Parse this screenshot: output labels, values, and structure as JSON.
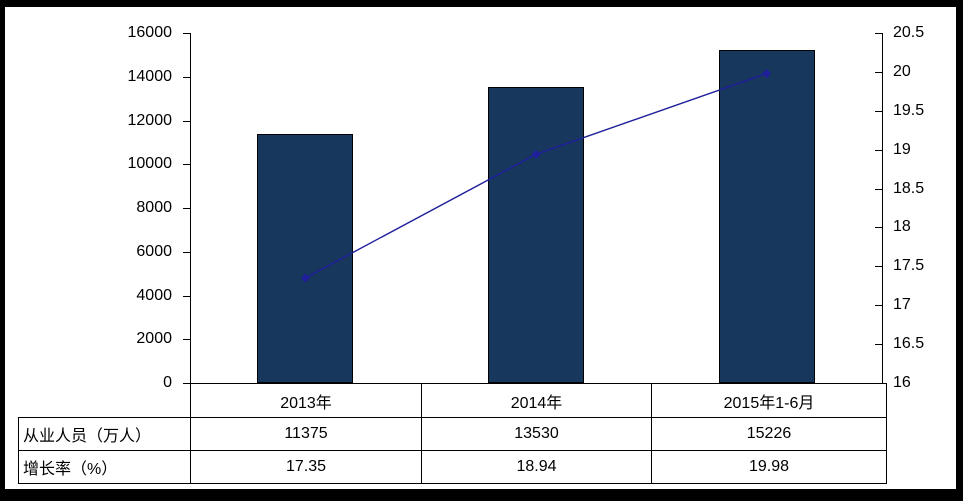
{
  "frame_color": "#000000",
  "background_color": "#ffffff",
  "chart_data": {
    "type": "bar",
    "subtype": "bar-with-line-overlay",
    "title": "",
    "xlabel": "",
    "ylabel_left": "",
    "ylabel_right": "",
    "grid": false,
    "legend_position": "none",
    "categories": [
      "2013年",
      "2014年",
      "2015年1-6月"
    ],
    "series": [
      {
        "name": "从业人员（万人）",
        "type": "bar",
        "axis": "left",
        "values": [
          11375,
          13530,
          15226
        ],
        "color": "#17375D"
      },
      {
        "name": "增长率（%）",
        "type": "line",
        "axis": "right",
        "marker": "diamond",
        "values": [
          17.35,
          18.94,
          19.98
        ],
        "color": "#1F1F9C"
      }
    ],
    "left_axis": {
      "min": 0,
      "max": 16000,
      "step": 2000,
      "tick_labels": [
        "16000",
        "14000",
        "12000",
        "10000",
        "8000",
        "6000",
        "4000",
        "2000",
        "0"
      ]
    },
    "right_axis": {
      "min": 16,
      "max": 20.5,
      "step": 0.5,
      "tick_labels": [
        "20.5",
        "20",
        "19.5",
        "19",
        "18.5",
        "18",
        "17.5",
        "17",
        "16.5",
        "16"
      ]
    }
  },
  "table": {
    "header_row": [
      "2013年",
      "2014年",
      "2015年1-6月"
    ],
    "rows": [
      {
        "label": "从业人员（万人）",
        "values": [
          "11375",
          "13530",
          "15226"
        ]
      },
      {
        "label": "增长率（%）",
        "values": [
          "17.35",
          "18.94",
          "19.98"
        ]
      }
    ]
  }
}
